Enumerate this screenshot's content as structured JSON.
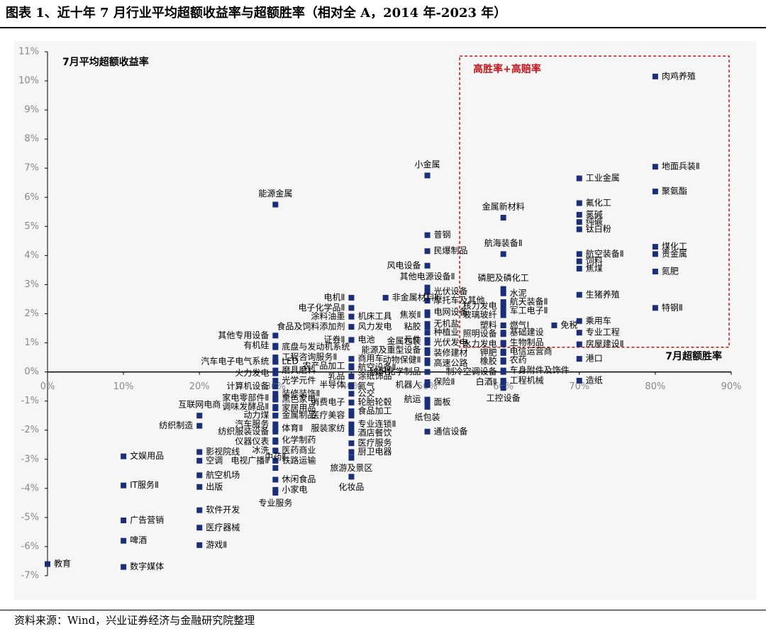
{
  "title": "图表 1、近十年 7 月行业平均超额收益率与超额胜率（相对全 A，2014 年-2023 年）",
  "source": "资料来源：Wind，兴业证券经济与金融研究院整理",
  "colors": {
    "marker": "#1b2f78",
    "box": "#c0161d",
    "label_red": "#c0161d",
    "axis": "#000000",
    "tick": "#888888",
    "bg": "#f6f6f6"
  },
  "chart_data": {
    "type": "scatter",
    "ylabel": "7月平均超额收益率",
    "xlabel": "7月超额胜率",
    "box_label": "高胜率+高赔率",
    "box": {
      "x": [
        0.55,
        0.9
      ],
      "y": [
        0.85,
        10.85
      ]
    },
    "xlim": [
      0,
      0.9
    ],
    "ylim": [
      -7,
      11
    ],
    "xticks": [
      "0%",
      "10%",
      "20%",
      "30%",
      "40%",
      "50%",
      "60%",
      "70%",
      "80%",
      "90%"
    ],
    "yticks": [
      "11%",
      "10%",
      "9%",
      "8%",
      "7%",
      "6%",
      "5%",
      "4%",
      "3%",
      "2%",
      "1%",
      "0%",
      "-1%",
      "-2%",
      "-3%",
      "-4%",
      "-5%",
      "-6%",
      "-7%"
    ],
    "points": [
      {
        "name": "肉鸡养殖",
        "x": 0.8,
        "y": 10.15,
        "pos": "r"
      },
      {
        "name": "地面兵装Ⅱ",
        "x": 0.8,
        "y": 7.05,
        "pos": "r"
      },
      {
        "name": "聚氨酯",
        "x": 0.8,
        "y": 6.2,
        "pos": "r"
      },
      {
        "name": "煤化工",
        "x": 0.8,
        "y": 4.3,
        "pos": "r"
      },
      {
        "name": "贵金属",
        "x": 0.8,
        "y": 4.05,
        "pos": "r"
      },
      {
        "name": "氮肥",
        "x": 0.8,
        "y": 3.45,
        "pos": "r"
      },
      {
        "name": "特钢Ⅱ",
        "x": 0.8,
        "y": 2.2,
        "pos": "r"
      },
      {
        "name": "工业金属",
        "x": 0.7,
        "y": 6.65,
        "pos": "r"
      },
      {
        "name": "氟化工",
        "x": 0.7,
        "y": 5.8,
        "pos": "r"
      },
      {
        "name": "氯碱",
        "x": 0.7,
        "y": 5.4,
        "pos": "r"
      },
      {
        "name": "纯碱",
        "x": 0.7,
        "y": 5.15,
        "pos": "r"
      },
      {
        "name": "钛白粉",
        "x": 0.7,
        "y": 4.9,
        "pos": "r"
      },
      {
        "name": "航空装备Ⅱ",
        "x": 0.7,
        "y": 4.05,
        "pos": "r"
      },
      {
        "name": "饲料",
        "x": 0.7,
        "y": 3.8,
        "pos": "r"
      },
      {
        "name": "焦煤",
        "x": 0.7,
        "y": 3.55,
        "pos": "r"
      },
      {
        "name": "生猪养殖",
        "x": 0.7,
        "y": 2.65,
        "pos": "r"
      },
      {
        "name": "乘用车",
        "x": 0.7,
        "y": 1.75,
        "pos": "r"
      },
      {
        "name": "专业工程",
        "x": 0.7,
        "y": 1.35,
        "pos": "r"
      },
      {
        "name": "房屋建设Ⅱ",
        "x": 0.7,
        "y": 0.95,
        "pos": "r"
      },
      {
        "name": "港口",
        "x": 0.7,
        "y": 0.45,
        "pos": "r"
      },
      {
        "name": "造纸",
        "x": 0.7,
        "y": -0.3,
        "pos": "r"
      },
      {
        "name": "免税",
        "x": 0.667,
        "y": 1.6,
        "pos": "r"
      },
      {
        "name": "金属新材料",
        "x": 0.6,
        "y": 5.3,
        "pos": "a"
      },
      {
        "name": "航海装备Ⅱ",
        "x": 0.6,
        "y": 4.05,
        "pos": "a"
      },
      {
        "name": "磷肥及磷化工",
        "x": 0.6,
        "y": 2.85,
        "pos": "a"
      },
      {
        "name": "水泥",
        "x": 0.6,
        "y": 2.7,
        "pos": "r"
      },
      {
        "name": "航天装备Ⅱ",
        "x": 0.6,
        "y": 2.4,
        "pos": "r"
      },
      {
        "name": "军工电子Ⅱ",
        "x": 0.6,
        "y": 2.1,
        "pos": "r"
      },
      {
        "name": "核力发电",
        "x": 0.6,
        "y": 2.25,
        "pos": "l"
      },
      {
        "name": "玻璃玻纤",
        "x": 0.6,
        "y": 1.95,
        "pos": "l"
      },
      {
        "name": "塑料",
        "x": 0.6,
        "y": 1.6,
        "pos": "l"
      },
      {
        "name": "燃气Ⅰ",
        "x": 0.6,
        "y": 1.6,
        "pos": "r"
      },
      {
        "name": "照明设备",
        "x": 0.6,
        "y": 1.3,
        "pos": "l"
      },
      {
        "name": "基础建设",
        "x": 0.6,
        "y": 1.35,
        "pos": "r"
      },
      {
        "name": "水力发电",
        "x": 0.6,
        "y": 0.95,
        "pos": "l"
      },
      {
        "name": "生物制品",
        "x": 0.6,
        "y": 1.0,
        "pos": "r"
      },
      {
        "name": "钾肥",
        "x": 0.6,
        "y": 0.65,
        "pos": "l"
      },
      {
        "name": "电信运营商",
        "x": 0.6,
        "y": 0.7,
        "pos": "r"
      },
      {
        "name": "橡胶",
        "x": 0.6,
        "y": 0.35,
        "pos": "l"
      },
      {
        "name": "农药",
        "x": 0.6,
        "y": 0.4,
        "pos": "r"
      },
      {
        "name": "制冷空调设备",
        "x": 0.6,
        "y": 0.0,
        "pos": "l"
      },
      {
        "name": "车身附件及饰件",
        "x": 0.6,
        "y": 0.05,
        "pos": "r"
      },
      {
        "name": "白酒Ⅱ",
        "x": 0.6,
        "y": -0.35,
        "pos": "l"
      },
      {
        "name": "工程机械",
        "x": 0.6,
        "y": -0.3,
        "pos": "r"
      },
      {
        "name": "工控设备",
        "x": 0.6,
        "y": -0.55,
        "pos": "b"
      },
      {
        "name": "小金属",
        "x": 0.5,
        "y": 6.75,
        "pos": "a"
      },
      {
        "name": "普钢",
        "x": 0.5,
        "y": 4.7,
        "pos": "r"
      },
      {
        "name": "民爆制品",
        "x": 0.5,
        "y": 4.15,
        "pos": "r"
      },
      {
        "name": "风电设备",
        "x": 0.5,
        "y": 3.65,
        "pos": "l"
      },
      {
        "name": "其他电源设备Ⅱ",
        "x": 0.5,
        "y": 2.9,
        "pos": "a"
      },
      {
        "name": "光伏设备",
        "x": 0.5,
        "y": 2.75,
        "pos": "r"
      },
      {
        "name": "摩托车及其他",
        "x": 0.5,
        "y": 2.45,
        "pos": "r"
      },
      {
        "name": "电网设备",
        "x": 0.5,
        "y": 2.05,
        "pos": "r"
      },
      {
        "name": "焦炭Ⅱ",
        "x": 0.5,
        "y": 1.95,
        "pos": "l"
      },
      {
        "name": "无机盐",
        "x": 0.5,
        "y": 1.65,
        "pos": "r"
      },
      {
        "name": "粘胶",
        "x": 0.5,
        "y": 1.55,
        "pos": "l"
      },
      {
        "name": "种植业",
        "x": 0.5,
        "y": 1.35,
        "pos": "r"
      },
      {
        "name": "元件",
        "x": 0.5,
        "y": 1.1,
        "pos": "l"
      },
      {
        "name": "光伏发电",
        "x": 0.5,
        "y": 1.0,
        "pos": "r"
      },
      {
        "name": "金属包装",
        "x": 0.5,
        "y": 1.05,
        "pos": "l"
      },
      {
        "name": "装修建材",
        "x": 0.5,
        "y": 0.65,
        "pos": "r"
      },
      {
        "name": "能源及重型设备",
        "x": 0.5,
        "y": 0.75,
        "pos": "l"
      },
      {
        "name": "高速公路",
        "x": 0.5,
        "y": 0.3,
        "pos": "r"
      },
      {
        "name": "动物保健Ⅱ",
        "x": 0.5,
        "y": 0.4,
        "pos": "l"
      },
      {
        "name": "纺织化学制品",
        "x": 0.5,
        "y": 0.0,
        "pos": "l"
      },
      {
        "name": "保险Ⅱ",
        "x": 0.5,
        "y": -0.35,
        "pos": "r"
      },
      {
        "name": "机器人",
        "x": 0.5,
        "y": -0.45,
        "pos": "l"
      },
      {
        "name": "航运",
        "x": 0.5,
        "y": -0.95,
        "pos": "l"
      },
      {
        "name": "面板",
        "x": 0.5,
        "y": -1.05,
        "pos": "r"
      },
      {
        "name": "纸包装",
        "x": 0.5,
        "y": -1.2,
        "pos": "b"
      },
      {
        "name": "通信设备",
        "x": 0.5,
        "y": -2.05,
        "pos": "r"
      },
      {
        "name": "能源金属",
        "x": 0.3,
        "y": 5.75,
        "pos": "a"
      },
      {
        "name": "电机Ⅱ",
        "x": 0.4,
        "y": 2.55,
        "pos": "l"
      },
      {
        "name": "非金属材料Ⅱ",
        "x": 0.445,
        "y": 2.55,
        "pos": "r"
      },
      {
        "name": "电子化学品Ⅱ",
        "x": 0.4,
        "y": 2.2,
        "pos": "l"
      },
      {
        "name": "涂料油墨",
        "x": 0.4,
        "y": 1.9,
        "pos": "l"
      },
      {
        "name": "机床工具",
        "x": 0.4,
        "y": 1.9,
        "pos": "r"
      },
      {
        "name": "食品及饲料添加剂",
        "x": 0.4,
        "y": 1.55,
        "pos": "l"
      },
      {
        "name": "风力发电",
        "x": 0.4,
        "y": 1.55,
        "pos": "r"
      },
      {
        "name": "证券Ⅱ",
        "x": 0.4,
        "y": 1.1,
        "pos": "l"
      },
      {
        "name": "电池",
        "x": 0.4,
        "y": 1.1,
        "pos": "r"
      },
      {
        "name": "底盘与发动机系统",
        "x": 0.3,
        "y": 0.85,
        "pos": "r"
      },
      {
        "name": "工程咨询服务Ⅱ",
        "x": 0.3,
        "y": 0.5,
        "pos": "r"
      },
      {
        "name": "商用车",
        "x": 0.4,
        "y": 0.45,
        "pos": "r"
      },
      {
        "name": "农产品加工",
        "x": 0.4,
        "y": 0.2,
        "pos": "l"
      },
      {
        "name": "航空设备Ⅱ",
        "x": 0.4,
        "y": 0.15,
        "pos": "r"
      },
      {
        "name": "乳品",
        "x": 0.4,
        "y": -0.15,
        "pos": "l"
      },
      {
        "name": "涂纸饰品",
        "x": 0.4,
        "y": -0.15,
        "pos": "r"
      },
      {
        "name": "半导体",
        "x": 0.4,
        "y": -0.45,
        "pos": "l"
      },
      {
        "name": "氮气",
        "x": 0.4,
        "y": -0.5,
        "pos": "r"
      },
      {
        "name": "公交",
        "x": 0.4,
        "y": -0.75,
        "pos": "r"
      },
      {
        "name": "消费电子",
        "x": 0.4,
        "y": -1.05,
        "pos": "l"
      },
      {
        "name": "轮胎轮毂",
        "x": 0.4,
        "y": -1.05,
        "pos": "r"
      },
      {
        "name": "医疗美容",
        "x": 0.4,
        "y": -1.5,
        "pos": "l"
      },
      {
        "name": "食品加工",
        "x": 0.4,
        "y": -1.35,
        "pos": "r"
      },
      {
        "name": "服装家纺",
        "x": 0.4,
        "y": -1.95,
        "pos": "l"
      },
      {
        "name": "专业连锁Ⅱ",
        "x": 0.4,
        "y": -1.8,
        "pos": "r"
      },
      {
        "name": "酒店餐饮",
        "x": 0.4,
        "y": -2.1,
        "pos": "r"
      },
      {
        "name": "医疗服务",
        "x": 0.4,
        "y": -2.45,
        "pos": "r"
      },
      {
        "name": "厨卫电器",
        "x": 0.4,
        "y": -2.75,
        "pos": "r"
      },
      {
        "name": "旅游及景区",
        "x": 0.4,
        "y": -2.95,
        "pos": "b"
      },
      {
        "name": "化妆品",
        "x": 0.4,
        "y": -3.6,
        "pos": "b"
      },
      {
        "name": "其他专用设备",
        "x": 0.3,
        "y": 1.25,
        "pos": "l"
      },
      {
        "name": "有机硅",
        "x": 0.3,
        "y": 0.9,
        "pos": "l"
      },
      {
        "name": "汽车电子电气系统",
        "x": 0.3,
        "y": 0.35,
        "pos": "l"
      },
      {
        "name": "LED",
        "x": 0.3,
        "y": 0.35,
        "pos": "r"
      },
      {
        "name": "火力发电",
        "x": 0.3,
        "y": -0.05,
        "pos": "l"
      },
      {
        "name": "磨具磨料",
        "x": 0.3,
        "y": 0.05,
        "pos": "r"
      },
      {
        "name": "光学元件",
        "x": 0.3,
        "y": -0.3,
        "pos": "r"
      },
      {
        "name": "计算机设备",
        "x": 0.3,
        "y": -0.5,
        "pos": "l"
      },
      {
        "name": "装修装饰Ⅱ",
        "x": 0.3,
        "y": -0.75,
        "pos": "r"
      },
      {
        "name": "家电零部件Ⅱ",
        "x": 0.3,
        "y": -0.9,
        "pos": "l"
      },
      {
        "name": "黑色家电",
        "x": 0.3,
        "y": -0.95,
        "pos": "r"
      },
      {
        "name": "调味发酵品Ⅱ",
        "x": 0.3,
        "y": -1.2,
        "pos": "l"
      },
      {
        "name": "家居用品",
        "x": 0.3,
        "y": -1.25,
        "pos": "r"
      },
      {
        "name": "动力煤",
        "x": 0.3,
        "y": -1.5,
        "pos": "l"
      },
      {
        "name": "金属制品",
        "x": 0.3,
        "y": -1.5,
        "pos": "r"
      },
      {
        "name": "汽车服务",
        "x": 0.3,
        "y": -1.8,
        "pos": "l"
      },
      {
        "name": "体育Ⅱ",
        "x": 0.3,
        "y": -1.95,
        "pos": "r"
      },
      {
        "name": "纺织服装设备",
        "x": 0.3,
        "y": -2.05,
        "pos": "l"
      },
      {
        "name": "化学制药",
        "x": 0.3,
        "y": -2.35,
        "pos": "r"
      },
      {
        "name": "仪器仪表",
        "x": 0.3,
        "y": -2.4,
        "pos": "l"
      },
      {
        "name": "冰洗",
        "x": 0.3,
        "y": -2.7,
        "pos": "l"
      },
      {
        "name": "医药商业",
        "x": 0.3,
        "y": -2.7,
        "pos": "r"
      },
      {
        "name": "电视广播Ⅱ",
        "x": 0.3,
        "y": -3.05,
        "pos": "l"
      },
      {
        "name": "铁路运输",
        "x": 0.3,
        "y": -3.05,
        "pos": "r"
      },
      {
        "name": "中药Ⅱ",
        "x": 0.3,
        "y": -3.3,
        "pos": "a"
      },
      {
        "name": "休闲食品",
        "x": 0.3,
        "y": -3.7,
        "pos": "r"
      },
      {
        "name": "小家电",
        "x": 0.3,
        "y": -4.05,
        "pos": "r"
      },
      {
        "name": "专业服务",
        "x": 0.3,
        "y": -4.15,
        "pos": "b"
      },
      {
        "name": "互联网电商",
        "x": 0.2,
        "y": -1.5,
        "pos": "a"
      },
      {
        "name": "纺织制造",
        "x": 0.2,
        "y": -1.85,
        "pos": "l"
      },
      {
        "name": "影视院线",
        "x": 0.2,
        "y": -2.75,
        "pos": "r"
      },
      {
        "name": "空调",
        "x": 0.2,
        "y": -3.05,
        "pos": "r"
      },
      {
        "name": "航空机场",
        "x": 0.2,
        "y": -3.55,
        "pos": "r"
      },
      {
        "name": "出版",
        "x": 0.2,
        "y": -3.95,
        "pos": "r"
      },
      {
        "name": "软件开发",
        "x": 0.2,
        "y": -4.75,
        "pos": "r"
      },
      {
        "name": "医疗器械",
        "x": 0.2,
        "y": -5.35,
        "pos": "r"
      },
      {
        "name": "游戏Ⅱ",
        "x": 0.2,
        "y": -5.95,
        "pos": "r"
      },
      {
        "name": "文娱用品",
        "x": 0.1,
        "y": -2.9,
        "pos": "r"
      },
      {
        "name": "IT服务Ⅱ",
        "x": 0.1,
        "y": -3.9,
        "pos": "r"
      },
      {
        "name": "广告营销",
        "x": 0.1,
        "y": -5.1,
        "pos": "r"
      },
      {
        "name": "啤酒",
        "x": 0.1,
        "y": -5.8,
        "pos": "r"
      },
      {
        "name": "数字媒体",
        "x": 0.1,
        "y": -6.7,
        "pos": "r"
      },
      {
        "name": "教育",
        "x": 0.0,
        "y": -6.6,
        "pos": "r"
      }
    ]
  }
}
